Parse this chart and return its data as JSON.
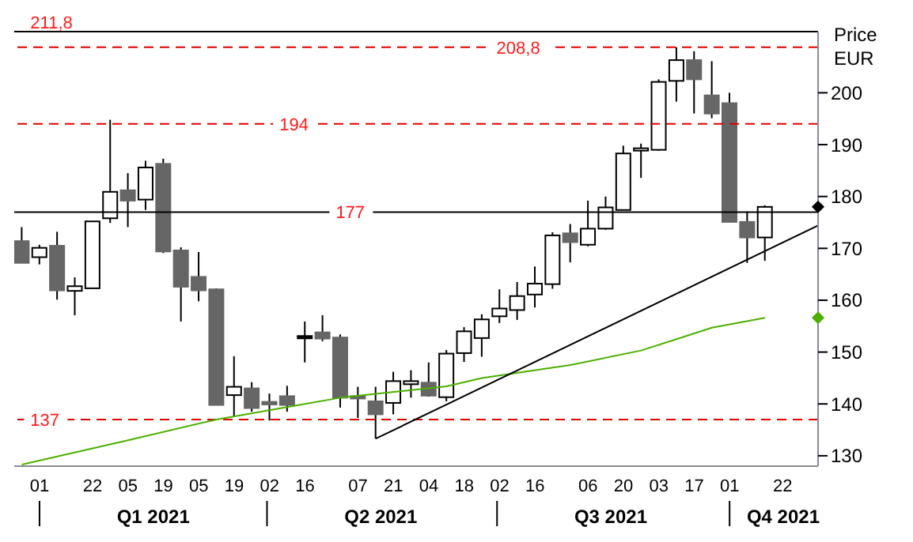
{
  "chart_data": {
    "type": "candlestick",
    "ylabel": "Price EUR",
    "xlim": [
      "2020-12-22",
      "2021-11-05"
    ],
    "xticks": [
      {
        "value": "2021-01-01",
        "label": "01"
      },
      {
        "value": "2021-01-22",
        "label": "22"
      },
      {
        "value": "2021-02-05",
        "label": "05"
      },
      {
        "value": "2021-02-19",
        "label": "19"
      },
      {
        "value": "2021-03-05",
        "label": "05"
      },
      {
        "value": "2021-03-19",
        "label": "19"
      },
      {
        "value": "2021-04-02",
        "label": "02"
      },
      {
        "value": "2021-04-16",
        "label": "16"
      },
      {
        "value": "2021-05-07",
        "label": "07"
      },
      {
        "value": "2021-05-21",
        "label": "21"
      },
      {
        "value": "2021-06-04",
        "label": "04"
      },
      {
        "value": "2021-06-18",
        "label": "18"
      },
      {
        "value": "2021-07-02",
        "label": "02"
      },
      {
        "value": "2021-07-16",
        "label": "16"
      },
      {
        "value": "2021-08-06",
        "label": "06"
      },
      {
        "value": "2021-08-20",
        "label": "20"
      },
      {
        "value": "2021-09-03",
        "label": "03"
      },
      {
        "value": "2021-09-17",
        "label": "17"
      },
      {
        "value": "2021-10-01",
        "label": "01"
      },
      {
        "value": "2021-10-22",
        "label": "22"
      }
    ],
    "ylim": [
      128,
      211.8
    ],
    "yticks": [
      130,
      140,
      150,
      160,
      170,
      180,
      190,
      200
    ],
    "annotations": [
      "Q1 2021",
      "Q2 2021",
      "Q3 2021",
      "Q4 2021"
    ],
    "ref_lines": [
      {
        "axis": "y",
        "value": 211.8,
        "label": "211,8",
        "color": "#000000",
        "line_style": "solid"
      },
      {
        "axis": "y",
        "value": 208.8,
        "label": "208,8",
        "color": "#e00000",
        "line_style": "dashed"
      },
      {
        "axis": "y",
        "value": 194,
        "label": "194",
        "color": "#e00000",
        "line_style": "dashed"
      },
      {
        "axis": "y",
        "value": 177,
        "label": "177",
        "color": "#000000",
        "line_style": "solid"
      },
      {
        "axis": "y",
        "value": 137,
        "label": "137",
        "color": "#e00000",
        "line_style": "dashed"
      }
    ],
    "series": [
      {
        "color": "#666666",
        "colors": [
          "#666666",
          "#ffffff",
          "#666666",
          "#ffffff",
          "#ffffff",
          "#ffffff",
          "#666666",
          "#ffffff",
          "#666666",
          "#666666",
          "#666666",
          "#666666",
          "#ffffff",
          "#666666",
          "#666666",
          "#666666",
          "#000000",
          "#666666",
          "#666666",
          "#666666",
          "#666666",
          "#ffffff",
          "#ffffff",
          "#666666",
          "#ffffff",
          "#ffffff",
          "#ffffff",
          "#ffffff",
          "#ffffff",
          "#ffffff",
          "#ffffff",
          "#666666",
          "#ffffff",
          "#ffffff",
          "#ffffff",
          "#ffffff",
          "#ffffff",
          "#ffffff",
          "#666666",
          "#666666",
          "#666666",
          "#666666",
          "#ffffff"
        ],
        "x": [
          "2020-12-25",
          "2021-01-01",
          "2021-01-08",
          "2021-01-15",
          "2021-01-22",
          "2021-01-29",
          "2021-02-05",
          "2021-02-12",
          "2021-02-19",
          "2021-02-26",
          "2021-03-05",
          "2021-03-12",
          "2021-03-19",
          "2021-03-26",
          "2021-04-02",
          "2021-04-09",
          "2021-04-16",
          "2021-04-23",
          "2021-04-30",
          "2021-05-07",
          "2021-05-14",
          "2021-05-21",
          "2021-05-28",
          "2021-06-04",
          "2021-06-11",
          "2021-06-18",
          "2021-06-25",
          "2021-07-02",
          "2021-07-09",
          "2021-07-16",
          "2021-07-23",
          "2021-07-30",
          "2021-08-06",
          "2021-08-13",
          "2021-08-20",
          "2021-08-27",
          "2021-09-03",
          "2021-09-10",
          "2021-09-17",
          "2021-09-24",
          "2021-10-01",
          "2021-10-08",
          "2021-10-15"
        ],
        "ohlc": [
          [
            171.4,
            174.1,
            167.2,
            167.2
          ],
          [
            168.3,
            170.7,
            166.9,
            170.1
          ],
          [
            170.5,
            173.2,
            160.1,
            161.9
          ],
          [
            161.8,
            164.4,
            157.1,
            162.7
          ],
          [
            162.3,
            175.2,
            162.3,
            175.2
          ],
          [
            175.8,
            194.8,
            174.9,
            180.9
          ],
          [
            181.2,
            184.5,
            174.1,
            179.2
          ],
          [
            179.4,
            186.9,
            177.4,
            185.6
          ],
          [
            186.3,
            187.3,
            169.1,
            169.4
          ],
          [
            169.6,
            170.2,
            155.9,
            162.6
          ],
          [
            164.5,
            169.3,
            159.8,
            161.9
          ],
          [
            162.1,
            162.3,
            139.8,
            139.8
          ],
          [
            141.7,
            149.2,
            137.5,
            143.3
          ],
          [
            143.0,
            144.2,
            138.5,
            139.2
          ],
          [
            140.4,
            142.0,
            136.8,
            139.9
          ],
          [
            141.5,
            143.5,
            138.5,
            139.8
          ],
          [
            153.1,
            155.9,
            148.0,
            153.1
          ],
          [
            153.8,
            157.1,
            152.1,
            152.6
          ],
          [
            152.8,
            153.4,
            139.3,
            141.2
          ],
          [
            141.5,
            143.3,
            137.3,
            141.1
          ],
          [
            140.5,
            143.3,
            133.3,
            138.0
          ],
          [
            140.2,
            146.2,
            138.0,
            144.4
          ],
          [
            143.8,
            146.5,
            141.2,
            144.4
          ],
          [
            144.1,
            148.0,
            141.4,
            141.6
          ],
          [
            141.3,
            150.4,
            140.5,
            149.7
          ],
          [
            149.8,
            154.8,
            148.1,
            154.0
          ],
          [
            152.7,
            157.3,
            149.1,
            156.3
          ],
          [
            156.9,
            162.1,
            155.6,
            158.4
          ],
          [
            158.1,
            163.5,
            156.2,
            160.8
          ],
          [
            161.1,
            166.5,
            158.6,
            163.2
          ],
          [
            163.1,
            173.1,
            162.2,
            172.5
          ],
          [
            172.9,
            174.7,
            167.3,
            171.2
          ],
          [
            170.7,
            179.2,
            170.4,
            173.8
          ],
          [
            173.8,
            180.0,
            173.6,
            177.9
          ],
          [
            177.4,
            189.8,
            177.4,
            188.3
          ],
          [
            188.9,
            190.2,
            183.6,
            189.3
          ],
          [
            189.0,
            202.6,
            188.8,
            202.1
          ],
          [
            202.3,
            208.8,
            198.3,
            206.3
          ],
          [
            206.3,
            208.0,
            196.0,
            202.6
          ],
          [
            199.5,
            206.1,
            195.1,
            196.0
          ],
          [
            198.0,
            200.0,
            175.1,
            175.1
          ],
          [
            175.1,
            177.1,
            167.2,
            172.1
          ],
          [
            172.1,
            178.3,
            167.6,
            178.0
          ]
        ]
      },
      {
        "type": "line",
        "color": "#4caf00",
        "x": [
          "2020-12-25",
          "2021-02-05",
          "2021-03-12",
          "2021-04-30",
          "2021-06-11",
          "2021-06-25",
          "2021-07-30",
          "2021-08-27",
          "2021-09-10",
          "2021-09-24",
          "2021-10-15"
        ],
        "values": [
          128.3,
          133.0,
          137.0,
          141.2,
          143.4,
          145.0,
          147.5,
          150.3,
          152.5,
          154.7,
          156.6
        ]
      },
      {
        "type": "line",
        "color": "#000000",
        "x": [
          "2021-05-14",
          "2021-11-05"
        ],
        "values": [
          133.3,
          174.4
        ]
      }
    ]
  }
}
